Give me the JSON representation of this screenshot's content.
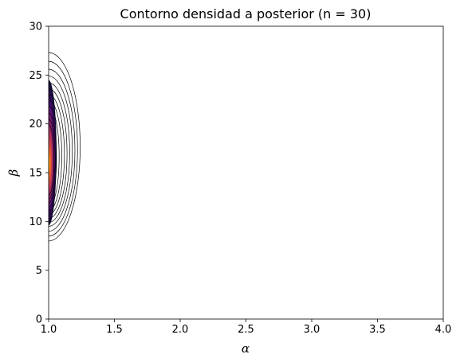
{
  "chart_data": {
    "type": "contour",
    "title": "Contorno densidad a posterior (n = 30)",
    "xlabel": "α",
    "ylabel": "β",
    "xlim": [
      1.0,
      4.0
    ],
    "ylim": [
      0,
      30
    ],
    "xticks": [
      1.0,
      1.5,
      2.0,
      2.5,
      3.0,
      3.5,
      4.0
    ],
    "xtick_labels": [
      "1.0",
      "1.5",
      "2.0",
      "2.5",
      "3.0",
      "3.5",
      "4.0"
    ],
    "yticks": [
      0,
      5,
      10,
      15,
      20,
      25,
      30
    ],
    "ytick_labels": [
      "0",
      "5",
      "10",
      "15",
      "20",
      "25",
      "30"
    ],
    "grid": false,
    "colormap": "inferno",
    "mode": {
      "alpha": 1.0,
      "beta": 16.0
    },
    "outer_contours": [
      {
        "alpha_max": 1.24,
        "beta_min": 8.0,
        "beta_max": 27.3
      },
      {
        "alpha_max": 1.22,
        "beta_min": 8.5,
        "beta_max": 26.4
      },
      {
        "alpha_max": 1.2,
        "beta_min": 9.0,
        "beta_max": 25.6
      },
      {
        "alpha_max": 1.18,
        "beta_min": 9.5,
        "beta_max": 24.9
      },
      {
        "alpha_max": 1.16,
        "beta_min": 9.9,
        "beta_max": 24.2
      },
      {
        "alpha_max": 1.14,
        "beta_min": 10.3,
        "beta_max": 23.6
      },
      {
        "alpha_max": 1.12,
        "beta_min": 10.7,
        "beta_max": 23.0
      },
      {
        "alpha_max": 1.1,
        "beta_min": 11.1,
        "beta_max": 22.4
      },
      {
        "alpha_max": 1.08,
        "beta_min": 11.5,
        "beta_max": 21.8
      },
      {
        "alpha_max": 1.06,
        "beta_min": 11.9,
        "beta_max": 21.1
      },
      {
        "alpha_max": 1.05,
        "beta_min": 12.3,
        "beta_max": 20.5
      },
      {
        "alpha_max": 1.04,
        "beta_min": 12.7,
        "beta_max": 19.9
      }
    ],
    "filled_levels": [
      {
        "alpha_max": 1.06,
        "beta_min": 9.6,
        "beta_max": 24.5,
        "color": "#140b34"
      },
      {
        "alpha_max": 1.055,
        "beta_min": 10.2,
        "beta_max": 23.6,
        "color": "#2a0a54"
      },
      {
        "alpha_max": 1.05,
        "beta_min": 10.8,
        "beta_max": 22.7,
        "color": "#420a68"
      },
      {
        "alpha_max": 1.045,
        "beta_min": 11.3,
        "beta_max": 21.9,
        "color": "#5c126e"
      },
      {
        "alpha_max": 1.04,
        "beta_min": 11.8,
        "beta_max": 21.1,
        "color": "#781c6d"
      },
      {
        "alpha_max": 1.035,
        "beta_min": 12.3,
        "beta_max": 20.3,
        "color": "#932667"
      },
      {
        "alpha_max": 1.03,
        "beta_min": 12.8,
        "beta_max": 19.6,
        "color": "#ae305c"
      },
      {
        "alpha_max": 1.025,
        "beta_min": 13.3,
        "beta_max": 18.9,
        "color": "#c73e4c"
      },
      {
        "alpha_max": 1.02,
        "beta_min": 13.8,
        "beta_max": 18.3,
        "color": "#dd513a"
      },
      {
        "alpha_max": 1.016,
        "beta_min": 14.3,
        "beta_max": 17.7,
        "color": "#ed6925"
      },
      {
        "alpha_max": 1.012,
        "beta_min": 14.8,
        "beta_max": 17.2,
        "color": "#f8850f"
      },
      {
        "alpha_max": 1.008,
        "beta_min": 15.2,
        "beta_max": 16.8,
        "color": "#fba40a"
      },
      {
        "alpha_max": 1.004,
        "beta_min": 15.6,
        "beta_max": 16.4,
        "color": "#f6c745"
      }
    ]
  }
}
